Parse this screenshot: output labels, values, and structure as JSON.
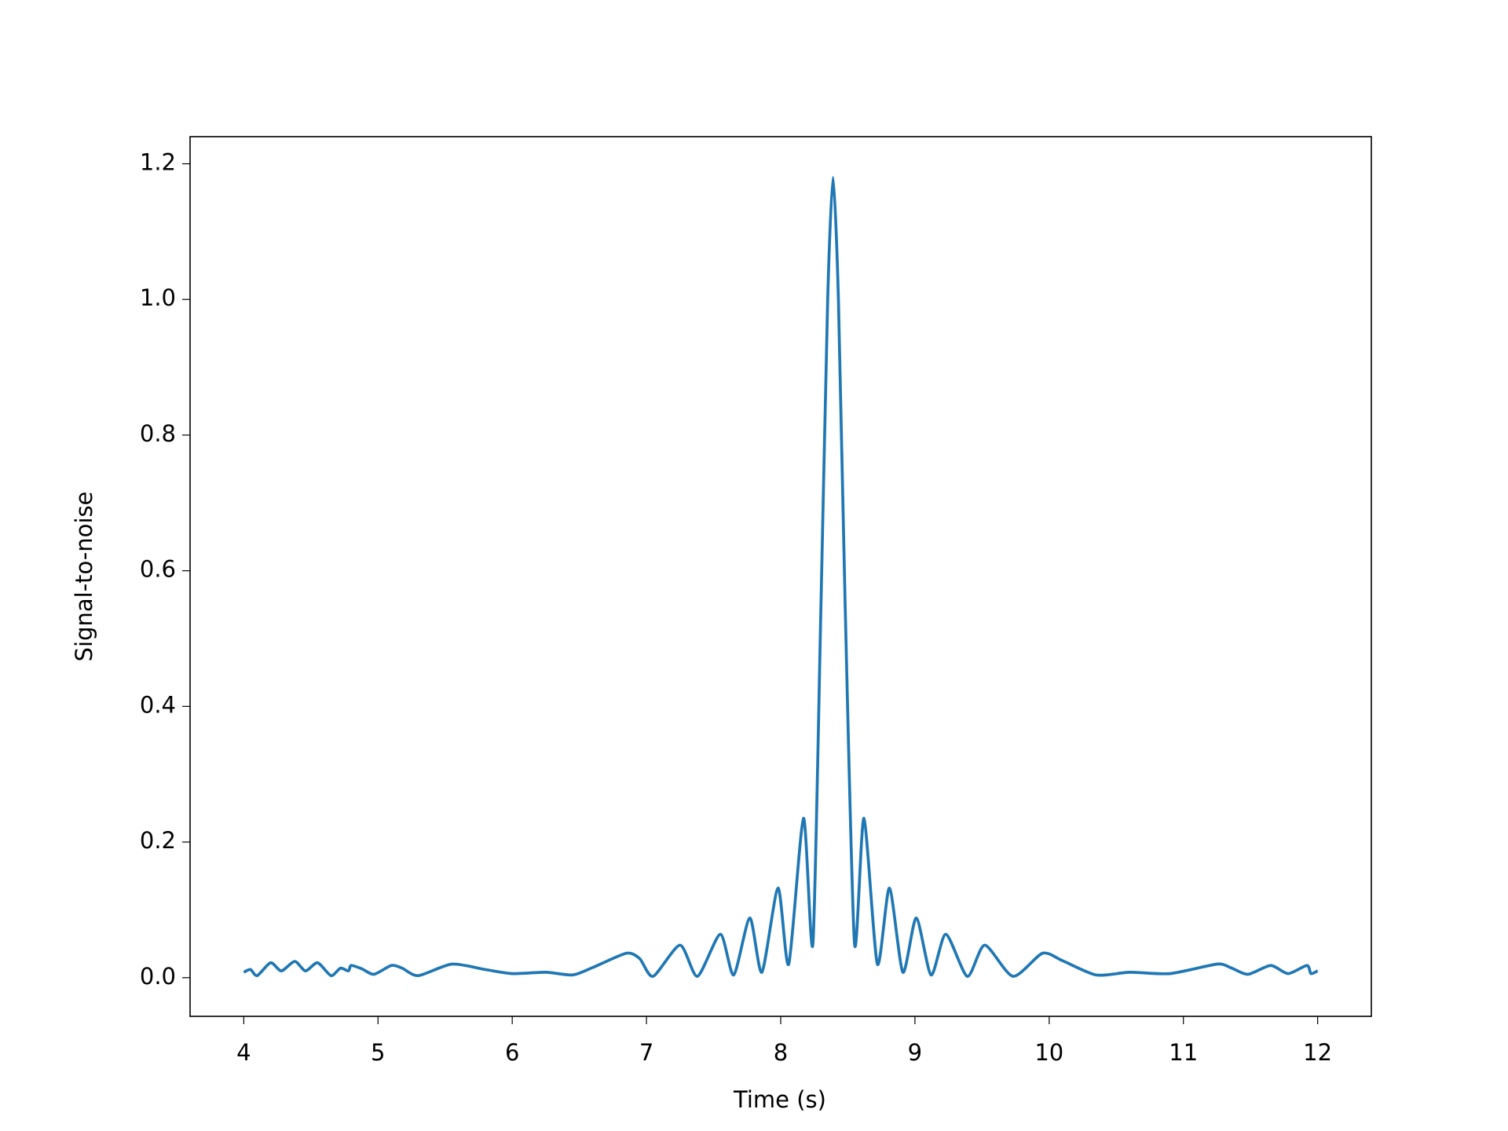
{
  "chart_data": {
    "type": "line",
    "xlabel": "Time (s)",
    "ylabel": "Signal-to-noise",
    "x": [
      4.0,
      4.05,
      4.1,
      4.2,
      4.28,
      4.38,
      4.46,
      4.55,
      4.65,
      4.72,
      4.78,
      4.8,
      4.88,
      4.97,
      5.1,
      5.18,
      5.3,
      5.55,
      5.8,
      6.0,
      6.25,
      6.45,
      6.6,
      6.85,
      6.95,
      7.05,
      7.25,
      7.38,
      7.55,
      7.65,
      7.77,
      7.86,
      7.98,
      8.06,
      8.17,
      8.24,
      8.3,
      8.35,
      8.39,
      8.43,
      8.48,
      8.55,
      8.62,
      8.72,
      8.81,
      8.91,
      9.01,
      9.12,
      9.23,
      9.39,
      9.52,
      9.73,
      9.95,
      10.1,
      10.35,
      10.6,
      10.9,
      11.25,
      11.35,
      11.48,
      11.65,
      11.78,
      11.92,
      11.95,
      12.0
    ],
    "values": [
      0.008,
      0.012,
      0.003,
      0.022,
      0.01,
      0.024,
      0.01,
      0.022,
      0.003,
      0.014,
      0.01,
      0.018,
      0.013,
      0.005,
      0.018,
      0.014,
      0.003,
      0.02,
      0.012,
      0.006,
      0.008,
      0.004,
      0.015,
      0.036,
      0.028,
      0.002,
      0.048,
      0.002,
      0.064,
      0.004,
      0.088,
      0.008,
      0.132,
      0.02,
      0.235,
      0.05,
      0.55,
      1.0,
      1.18,
      1.0,
      0.55,
      0.05,
      0.235,
      0.02,
      0.132,
      0.008,
      0.088,
      0.004,
      0.064,
      0.002,
      0.048,
      0.002,
      0.036,
      0.025,
      0.004,
      0.008,
      0.006,
      0.02,
      0.015,
      0.005,
      0.018,
      0.006,
      0.018,
      0.006,
      0.01
    ],
    "color": "#1f77b4",
    "xlim": [
      3.6,
      12.4
    ],
    "xticks": [
      4,
      5,
      6,
      7,
      8,
      9,
      10,
      11,
      12
    ],
    "ylim": [
      -0.057,
      1.24
    ],
    "yticks": [
      {
        "value": 0,
        "label": "0.0"
      },
      0.2,
      0.4,
      0.6,
      0.8,
      {
        "value": 1,
        "label": "1.0"
      },
      1.2
    ],
    "grid": false
  }
}
